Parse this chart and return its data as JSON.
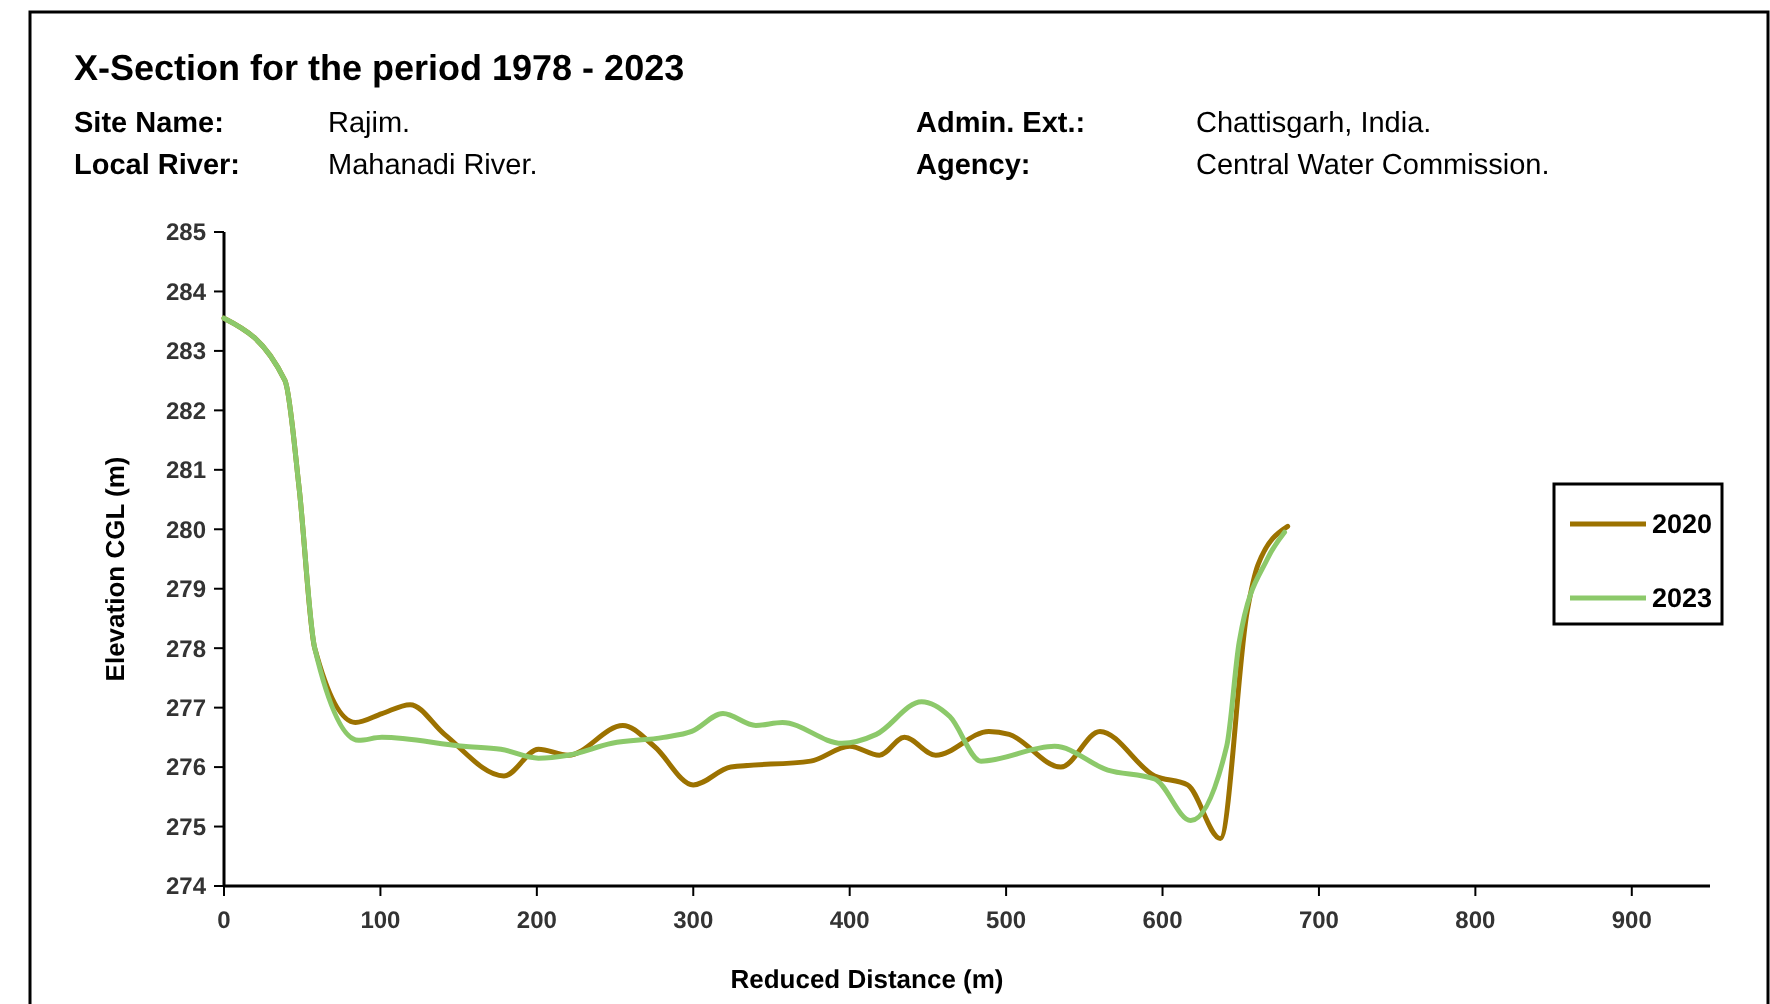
{
  "chart_data": {
    "type": "line",
    "title": "X-Section for the period 1978 - 2023",
    "annotations": [
      "Site Name:",
      "Rajim.",
      "Local River:",
      "Mahanadi River.",
      "Admin. Ext.:",
      "Chattisgarh, India.",
      "Agency:",
      "Central Water Commission."
    ],
    "xlabel": "Reduced Distance (m)",
    "ylabel": "Elevation CGL (m)",
    "xlim": [
      0,
      950
    ],
    "xticks": [
      0,
      100,
      200,
      300,
      400,
      500,
      600,
      700,
      800,
      900
    ],
    "ylim": [
      274,
      285
    ],
    "yticks": [
      274,
      275,
      276,
      277,
      278,
      279,
      280,
      281,
      282,
      283,
      284,
      285
    ],
    "grid": false,
    "legend": "right",
    "marker": "none",
    "line_style": "solid",
    "series": [
      {
        "name": "2020",
        "color": "#9c7200",
        "x": [
          0,
          39,
          48,
          58,
          84,
          101,
          119,
          141,
          179,
          201,
          220,
          255,
          275,
          300,
          324,
          375,
          400,
          419,
          435,
          455,
          489,
          502,
          535,
          560,
          595,
          616,
          637,
          654,
          661,
          680
        ],
        "values": [
          283.55,
          282.5,
          280.7,
          278.0,
          276.75,
          276.9,
          277.05,
          276.55,
          275.85,
          276.3,
          276.2,
          276.7,
          276.35,
          275.7,
          276.0,
          276.1,
          276.35,
          276.2,
          276.5,
          276.2,
          276.6,
          276.55,
          276.0,
          276.6,
          275.85,
          275.7,
          274.8,
          278.6,
          279.4,
          280.05
        ]
      },
      {
        "name": "2023",
        "color": "#8cc96a",
        "x": [
          0,
          39,
          48,
          58,
          86,
          101,
          153,
          177,
          201,
          220,
          248,
          281,
          299,
          319,
          340,
          357,
          395,
          417,
          446,
          464,
          484,
          531,
          565,
          595,
          618,
          641,
          649,
          667,
          678
        ],
        "values": [
          283.55,
          282.5,
          280.7,
          278.0,
          276.45,
          276.5,
          276.35,
          276.3,
          276.15,
          276.2,
          276.4,
          276.5,
          276.6,
          276.9,
          276.7,
          276.75,
          276.4,
          276.55,
          277.1,
          276.85,
          276.1,
          276.35,
          275.95,
          275.8,
          275.1,
          276.35,
          278.1,
          279.5,
          279.95
        ]
      }
    ]
  }
}
